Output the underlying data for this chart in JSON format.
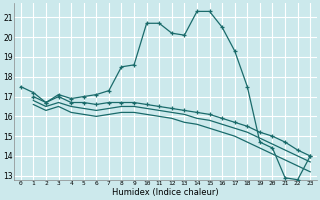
{
  "xlabel": "Humidex (Indice chaleur)",
  "bg_color": "#cce9ec",
  "line_color": "#1a6b6b",
  "grid_color": "#ffffff",
  "xlim": [
    -0.5,
    23.5
  ],
  "ylim": [
    12.8,
    21.7
  ],
  "xticks": [
    0,
    1,
    2,
    3,
    4,
    5,
    6,
    7,
    8,
    9,
    10,
    11,
    12,
    13,
    14,
    15,
    16,
    17,
    18,
    19,
    20,
    21,
    22,
    23
  ],
  "yticks": [
    13,
    14,
    15,
    16,
    17,
    18,
    19,
    20,
    21
  ],
  "line1_x": [
    0,
    1,
    2,
    3,
    4,
    5,
    6,
    7,
    8,
    9,
    10,
    11,
    12,
    13,
    14,
    15,
    16,
    17,
    18,
    19,
    20,
    21,
    22,
    23
  ],
  "line1_y": [
    17.5,
    17.2,
    16.7,
    17.1,
    16.9,
    17.0,
    17.1,
    17.3,
    18.5,
    18.6,
    20.7,
    20.7,
    20.2,
    20.1,
    21.3,
    21.3,
    20.5,
    19.3,
    17.5,
    14.7,
    14.4,
    12.9,
    12.8,
    14.0
  ],
  "line2_x": [
    1,
    2,
    3,
    4,
    5,
    6,
    7,
    8,
    9,
    10,
    11,
    12,
    13,
    14,
    15,
    16,
    17,
    18,
    19,
    20,
    21,
    22,
    23
  ],
  "line2_y": [
    17.0,
    16.7,
    17.0,
    16.7,
    16.7,
    16.6,
    16.7,
    16.7,
    16.7,
    16.6,
    16.5,
    16.4,
    16.3,
    16.2,
    16.1,
    15.9,
    15.7,
    15.5,
    15.2,
    15.0,
    14.7,
    14.3,
    14.0
  ],
  "line3_x": [
    1,
    2,
    3,
    4,
    5,
    6,
    7,
    8,
    9,
    10,
    11,
    12,
    13,
    14,
    15,
    16,
    17,
    18,
    19,
    20,
    21,
    22,
    23
  ],
  "line3_y": [
    16.8,
    16.5,
    16.7,
    16.5,
    16.4,
    16.3,
    16.4,
    16.5,
    16.5,
    16.4,
    16.3,
    16.2,
    16.1,
    15.9,
    15.8,
    15.6,
    15.4,
    15.2,
    14.9,
    14.6,
    14.3,
    14.0,
    13.7
  ],
  "line4_x": [
    1,
    2,
    3,
    4,
    5,
    6,
    7,
    8,
    9,
    10,
    11,
    12,
    13,
    14,
    15,
    16,
    17,
    18,
    19,
    20,
    21,
    22,
    23
  ],
  "line4_y": [
    16.6,
    16.3,
    16.5,
    16.2,
    16.1,
    16.0,
    16.1,
    16.2,
    16.2,
    16.1,
    16.0,
    15.9,
    15.7,
    15.6,
    15.4,
    15.2,
    15.0,
    14.7,
    14.4,
    14.1,
    13.8,
    13.5,
    13.2
  ]
}
